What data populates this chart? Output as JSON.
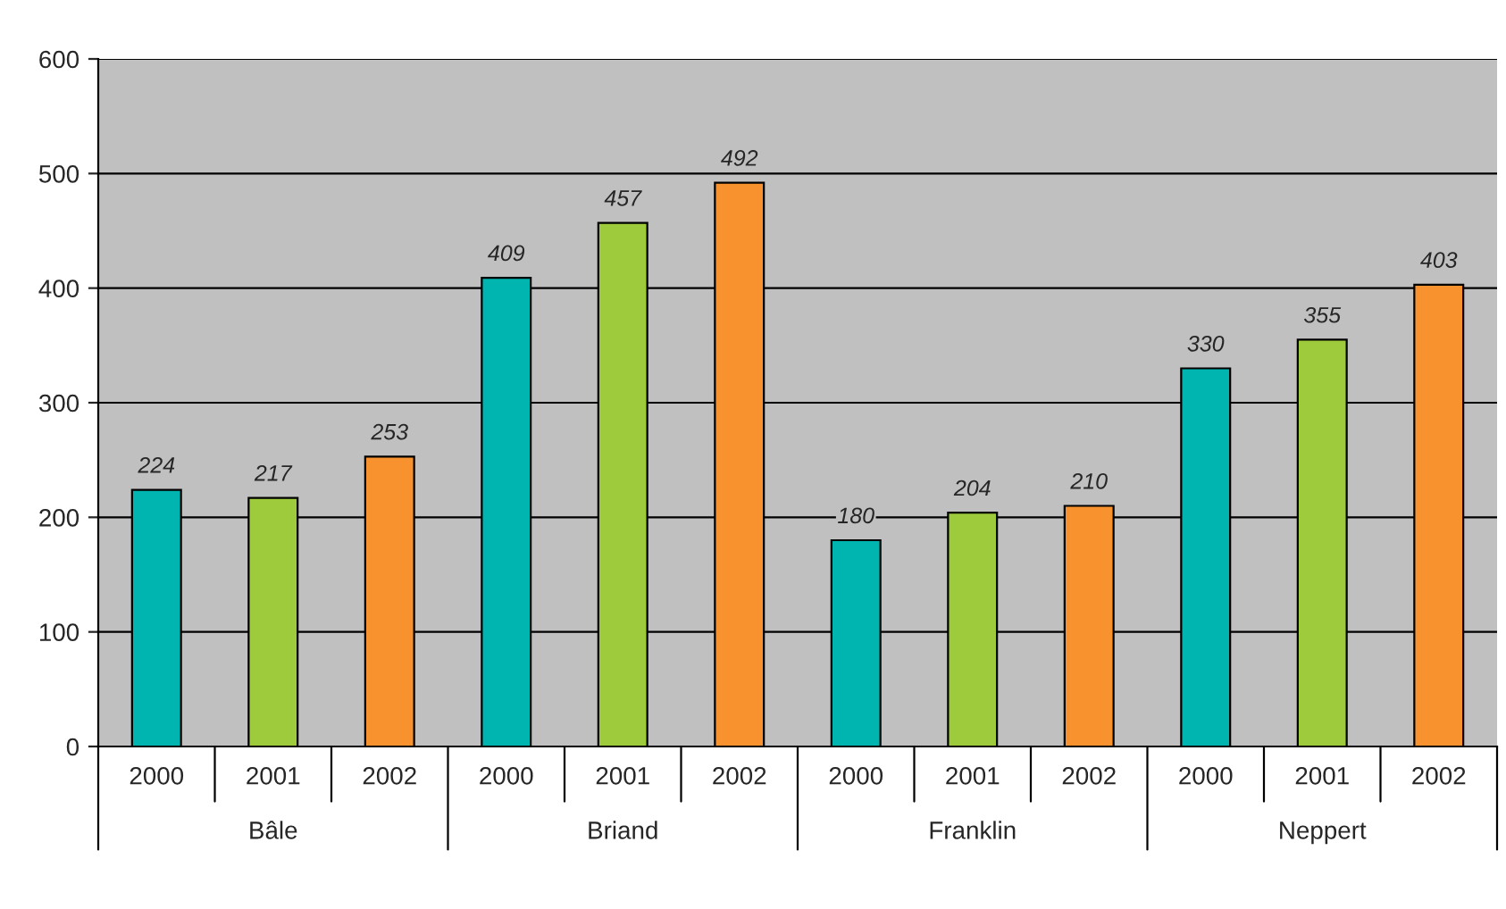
{
  "chart_data": {
    "type": "bar",
    "categories": [
      "Bâle",
      "Briand",
      "Franklin",
      "Neppert"
    ],
    "series": [
      {
        "name": "2000",
        "color": "#00b5b0",
        "values": [
          224,
          409,
          180,
          330
        ]
      },
      {
        "name": "2001",
        "color": "#9dcb3b",
        "values": [
          217,
          457,
          204,
          355
        ]
      },
      {
        "name": "2002",
        "color": "#f7922e",
        "values": [
          253,
          492,
          210,
          403
        ]
      }
    ],
    "ylim": [
      0,
      600
    ],
    "yticks": [
      0,
      100,
      200,
      300,
      400,
      500,
      600
    ],
    "grid": "y",
    "legend": "bottom",
    "data_labels": true
  }
}
